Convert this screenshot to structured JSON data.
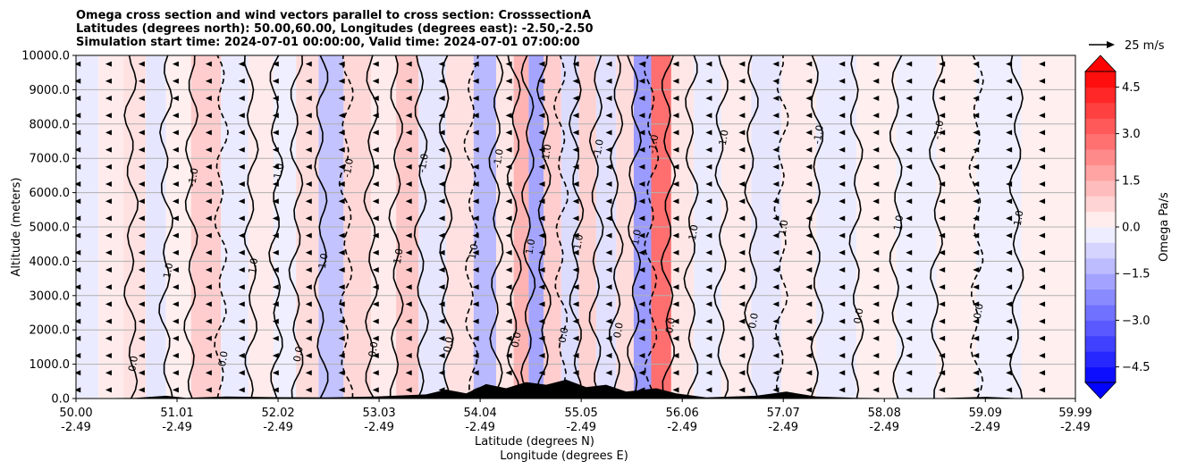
{
  "header": {
    "line1": "Omega cross section and wind vectors parallel to cross section: CrosssectionA",
    "line2": "Latitudes (degrees north): 50.00,60.00, Longitudes (degrees east): -2.50,-2.50",
    "line3": "Simulation start time: 2024-07-01 00:00:00, Valid time: 2024-07-01 07:00:00"
  },
  "chart_data": {
    "type": "heatmap",
    "title": "Omega cross section and wind vectors parallel to cross section: CrosssectionA",
    "ylabel": "Altitude (meters)",
    "xlabel_lat": "Latitude (degrees N)",
    "xlabel_lon": "Longitude (degrees E)",
    "ylim": [
      0,
      10000
    ],
    "xlim": [
      50.0,
      59.99
    ],
    "y_ticks": [
      "0.0",
      "1000.0",
      "2000.0",
      "3000.0",
      "4000.0",
      "5000.0",
      "6000.0",
      "7000.0",
      "8000.0",
      "9000.0",
      "10000.0"
    ],
    "x_ticks": [
      {
        "lat": "50.00",
        "lon": "-2.49"
      },
      {
        "lat": "51.01",
        "lon": "-2.49"
      },
      {
        "lat": "52.02",
        "lon": "-2.49"
      },
      {
        "lat": "53.03",
        "lon": "-2.49"
      },
      {
        "lat": "54.04",
        "lon": "-2.49"
      },
      {
        "lat": "55.05",
        "lon": "-2.49"
      },
      {
        "lat": "56.06",
        "lon": "-2.49"
      },
      {
        "lat": "57.07",
        "lon": "-2.49"
      },
      {
        "lat": "58.08",
        "lon": "-2.49"
      },
      {
        "lat": "59.09",
        "lon": "-2.49"
      },
      {
        "lat": "59.99",
        "lon": "-2.49"
      }
    ],
    "colorbar": {
      "label": "Omega Pa/s",
      "range": [
        -5.0,
        5.0
      ],
      "levels": 20,
      "tick_values": [
        4.5,
        3.0,
        1.5,
        0.0,
        -1.5,
        -3.0,
        -4.5
      ],
      "tick_labels": [
        "4.5",
        "3.0",
        "1.5",
        "0.0",
        "−1.5",
        "−3.0",
        "−4.5"
      ],
      "color_high": "#ff0000",
      "color_low": "#0000ff"
    },
    "vector_key": {
      "label": "25 m/s"
    },
    "contour_labels": [
      "0.0",
      "1.0",
      "-1.0"
    ],
    "omega_bands": [
      {
        "lat": 50.1,
        "value": -0.3
      },
      {
        "lat": 50.35,
        "value": 0.3
      },
      {
        "lat": 50.6,
        "value": 0.5
      },
      {
        "lat": 50.8,
        "value": -0.4
      },
      {
        "lat": 51.0,
        "value": 0.2
      },
      {
        "lat": 51.3,
        "value": 0.9
      },
      {
        "lat": 51.6,
        "value": -0.3
      },
      {
        "lat": 51.85,
        "value": 0.3
      },
      {
        "lat": 52.1,
        "value": -0.2
      },
      {
        "lat": 52.3,
        "value": 0.6
      },
      {
        "lat": 52.55,
        "value": -1.1
      },
      {
        "lat": 52.8,
        "value": 0.7
      },
      {
        "lat": 53.1,
        "value": 0.3
      },
      {
        "lat": 53.3,
        "value": 1.0
      },
      {
        "lat": 53.55,
        "value": -0.4
      },
      {
        "lat": 53.85,
        "value": 0.5
      },
      {
        "lat": 54.1,
        "value": -1.3
      },
      {
        "lat": 54.3,
        "value": 0.4
      },
      {
        "lat": 54.45,
        "value": 1.4
      },
      {
        "lat": 54.6,
        "value": -1.7
      },
      {
        "lat": 54.75,
        "value": 0.9
      },
      {
        "lat": 54.95,
        "value": -0.6
      },
      {
        "lat": 55.1,
        "value": 0.8
      },
      {
        "lat": 55.3,
        "value": -0.5
      },
      {
        "lat": 55.5,
        "value": 0.6
      },
      {
        "lat": 55.65,
        "value": -1.9
      },
      {
        "lat": 55.85,
        "value": 2.8
      },
      {
        "lat": 56.05,
        "value": 0.4
      },
      {
        "lat": 56.3,
        "value": -0.3
      },
      {
        "lat": 56.6,
        "value": 0.3
      },
      {
        "lat": 56.9,
        "value": -0.4
      },
      {
        "lat": 57.2,
        "value": 0.3
      },
      {
        "lat": 57.6,
        "value": -0.3
      },
      {
        "lat": 58.0,
        "value": 0.2
      },
      {
        "lat": 58.4,
        "value": -0.2
      },
      {
        "lat": 58.8,
        "value": 0.2
      },
      {
        "lat": 59.2,
        "value": -0.2
      },
      {
        "lat": 59.7,
        "value": 0.2
      }
    ],
    "contour_line_lats": [
      50.55,
      50.9,
      51.15,
      51.45,
      51.75,
      52.0,
      52.2,
      52.45,
      52.7,
      52.95,
      53.2,
      53.45,
      53.7,
      53.95,
      54.2,
      54.38,
      54.52,
      54.68,
      54.85,
      55.0,
      55.2,
      55.4,
      55.58,
      55.75,
      55.92,
      56.15,
      56.45,
      56.75,
      57.05,
      57.4,
      57.8,
      58.2,
      58.6,
      59.0,
      59.4
    ],
    "terrain": [
      {
        "lat": 50.0,
        "alt": 0
      },
      {
        "lat": 50.6,
        "alt": 20
      },
      {
        "lat": 50.9,
        "alt": 80
      },
      {
        "lat": 51.1,
        "alt": 20
      },
      {
        "lat": 51.5,
        "alt": 60
      },
      {
        "lat": 52.0,
        "alt": 40
      },
      {
        "lat": 52.5,
        "alt": 30
      },
      {
        "lat": 53.0,
        "alt": 60
      },
      {
        "lat": 53.5,
        "alt": 120
      },
      {
        "lat": 53.7,
        "alt": 260
      },
      {
        "lat": 53.9,
        "alt": 150
      },
      {
        "lat": 54.1,
        "alt": 420
      },
      {
        "lat": 54.3,
        "alt": 300
      },
      {
        "lat": 54.5,
        "alt": 480
      },
      {
        "lat": 54.7,
        "alt": 400
      },
      {
        "lat": 54.9,
        "alt": 550
      },
      {
        "lat": 55.1,
        "alt": 330
      },
      {
        "lat": 55.3,
        "alt": 400
      },
      {
        "lat": 55.5,
        "alt": 200
      },
      {
        "lat": 55.8,
        "alt": 300
      },
      {
        "lat": 56.0,
        "alt": 150
      },
      {
        "lat": 56.3,
        "alt": 30
      },
      {
        "lat": 56.8,
        "alt": 80
      },
      {
        "lat": 57.1,
        "alt": 200
      },
      {
        "lat": 57.4,
        "alt": 60
      },
      {
        "lat": 57.8,
        "alt": 20
      },
      {
        "lat": 58.5,
        "alt": 0
      },
      {
        "lat": 59.1,
        "alt": 50
      },
      {
        "lat": 59.5,
        "alt": 0
      },
      {
        "lat": 59.99,
        "alt": 0
      }
    ],
    "wind_vector_lats": [
      50.02,
      50.33,
      50.66,
      51.0,
      51.33,
      51.66,
      52.0,
      52.33,
      52.66,
      53.0,
      53.33,
      53.66,
      54.0,
      54.33,
      54.66,
      55.0,
      55.33,
      55.66,
      56.0,
      56.33,
      56.66,
      57.0,
      57.33,
      57.66,
      58.0,
      58.33,
      58.66,
      59.0,
      59.33,
      59.66
    ],
    "wind_vector_alts": [
      250,
      750,
      1250,
      1750,
      2250,
      2750,
      3250,
      3750,
      4250,
      4750,
      5250,
      5750,
      6250,
      6750,
      7250,
      7750,
      8250,
      8750,
      9250,
      9750
    ]
  }
}
